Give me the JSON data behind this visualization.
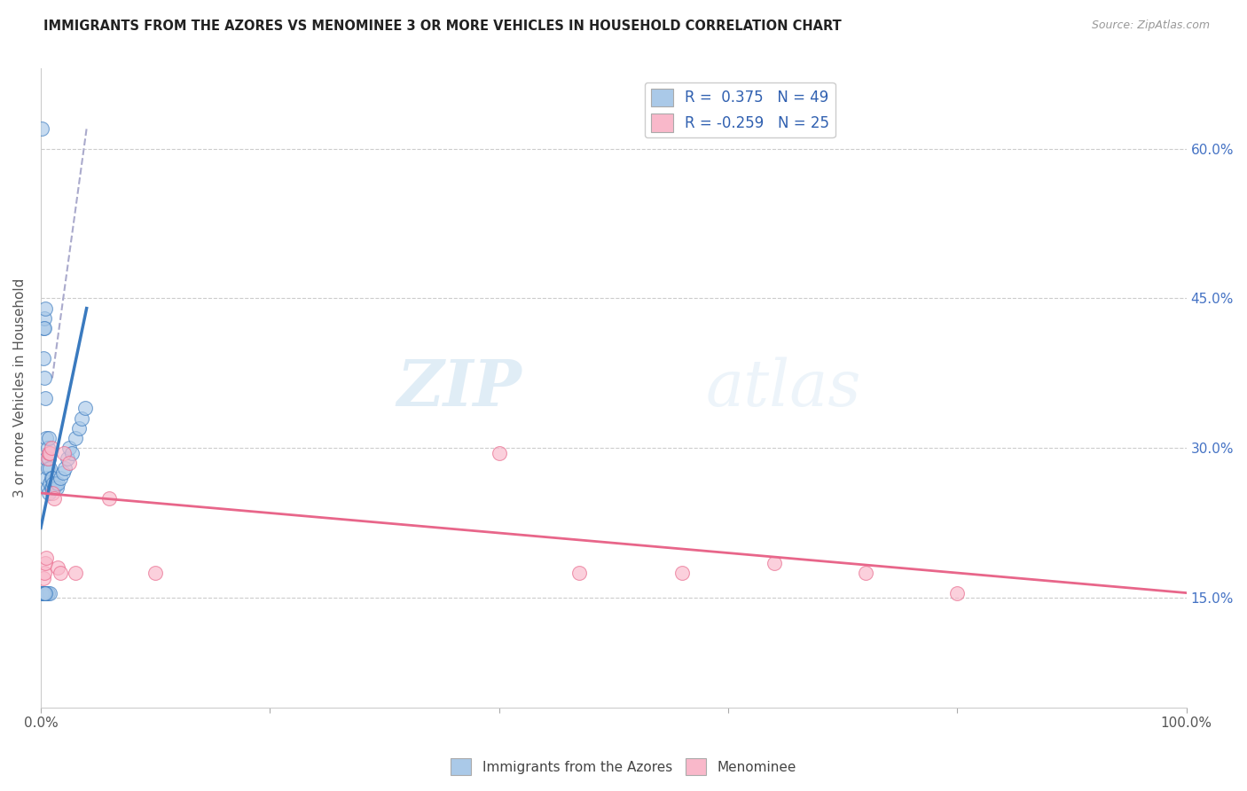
{
  "title": "IMMIGRANTS FROM THE AZORES VS MENOMINEE 3 OR MORE VEHICLES IN HOUSEHOLD CORRELATION CHART",
  "source": "Source: ZipAtlas.com",
  "ylabel": "3 or more Vehicles in Household",
  "ytick_labels": [
    "15.0%",
    "30.0%",
    "45.0%",
    "60.0%"
  ],
  "ytick_values": [
    0.15,
    0.3,
    0.45,
    0.6
  ],
  "xlim": [
    0.0,
    1.0
  ],
  "ylim": [
    0.04,
    0.68
  ],
  "color_blue": "#aac9e8",
  "color_pink": "#f9b8ca",
  "line_blue": "#3a7abf",
  "line_pink": "#e8668a",
  "line_dashed_color": "#aaaacc",
  "watermark_zip": "ZIP",
  "watermark_atlas": "atlas",
  "azores_pts_x": [
    0.001,
    0.001,
    0.002,
    0.002,
    0.002,
    0.003,
    0.003,
    0.003,
    0.003,
    0.004,
    0.004,
    0.004,
    0.005,
    0.005,
    0.005,
    0.005,
    0.006,
    0.006,
    0.006,
    0.006,
    0.007,
    0.007,
    0.007,
    0.008,
    0.008,
    0.008,
    0.009,
    0.009,
    0.01,
    0.01,
    0.011,
    0.012,
    0.013,
    0.014,
    0.015,
    0.017,
    0.019,
    0.021,
    0.023,
    0.025,
    0.027,
    0.03,
    0.033,
    0.036,
    0.039,
    0.001,
    0.002,
    0.003,
    0.004
  ],
  "azores_pts_y": [
    0.62,
    0.155,
    0.42,
    0.39,
    0.155,
    0.37,
    0.43,
    0.42,
    0.155,
    0.35,
    0.44,
    0.155,
    0.31,
    0.29,
    0.27,
    0.155,
    0.3,
    0.28,
    0.26,
    0.155,
    0.31,
    0.29,
    0.255,
    0.28,
    0.265,
    0.155,
    0.27,
    0.26,
    0.27,
    0.26,
    0.265,
    0.26,
    0.265,
    0.26,
    0.265,
    0.27,
    0.275,
    0.28,
    0.29,
    0.3,
    0.295,
    0.31,
    0.32,
    0.33,
    0.34,
    0.155,
    0.155,
    0.155,
    0.155
  ],
  "menominee_pts_x": [
    0.002,
    0.003,
    0.004,
    0.005,
    0.006,
    0.007,
    0.008,
    0.009,
    0.01,
    0.012,
    0.015,
    0.017,
    0.02,
    0.025,
    0.03,
    0.06,
    0.1,
    0.4,
    0.47,
    0.56,
    0.64,
    0.72,
    0.8
  ],
  "menominee_pts_y": [
    0.17,
    0.175,
    0.185,
    0.19,
    0.29,
    0.295,
    0.295,
    0.3,
    0.255,
    0.25,
    0.18,
    0.175,
    0.295,
    0.285,
    0.175,
    0.25,
    0.175,
    0.295,
    0.175,
    0.175,
    0.185,
    0.175,
    0.155
  ],
  "blue_line_x": [
    0.0,
    0.04
  ],
  "blue_line_y": [
    0.22,
    0.44
  ],
  "pink_line_x": [
    0.0,
    1.0
  ],
  "pink_line_y": [
    0.255,
    0.155
  ],
  "dash_line_x": [
    0.01,
    0.04
  ],
  "dash_line_y": [
    0.37,
    0.62
  ]
}
